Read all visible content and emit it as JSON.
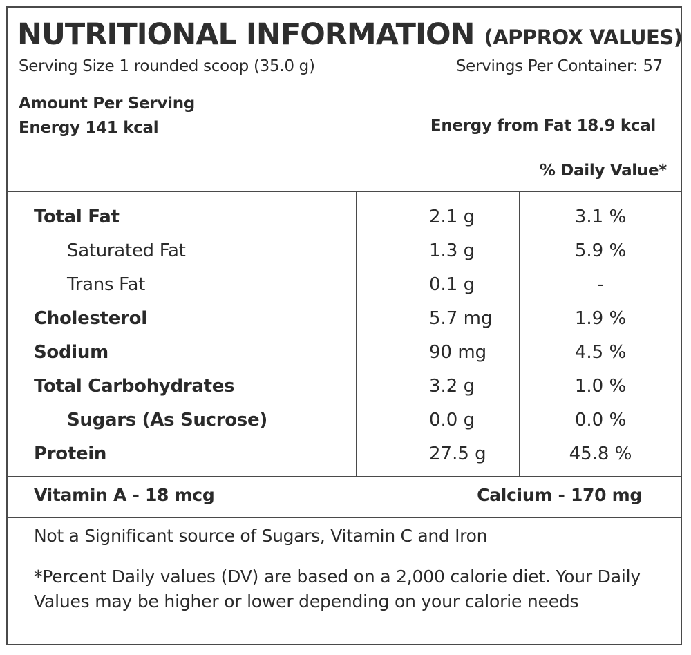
{
  "header": {
    "title": "NUTRITIONAL INFORMATION",
    "subtitle": "(APPROX VALUES)",
    "serving_size": "Serving Size 1 rounded scoop (35.0 g)",
    "servings_per_container": "Servings Per Container: 57"
  },
  "summary": {
    "amount_per_serving": "Amount Per Serving",
    "energy": "Energy 141 kcal",
    "energy_from_fat": "Energy from Fat 18.9 kcal"
  },
  "table": {
    "daily_value_header": "% Daily Value*",
    "rows": [
      {
        "name": "Total Fat",
        "amount": "2.1 g",
        "dv": "3.1 %"
      },
      {
        "name": "Saturated Fat",
        "amount": "1.3 g",
        "dv": "5.9 %"
      },
      {
        "name": "Trans Fat",
        "amount": "0.1 g",
        "dv": "-"
      },
      {
        "name": "Cholesterol",
        "amount": "5.7 mg",
        "dv": "1.9 %"
      },
      {
        "name": "Sodium",
        "amount": "90 mg",
        "dv": "4.5 %"
      },
      {
        "name": "Total Carbohydrates",
        "amount": "3.2 g",
        "dv": "1.0 %"
      },
      {
        "name": "Sugars (As Sucrose)",
        "amount": "0.0 g",
        "dv": "0.0 %"
      },
      {
        "name": "Protein",
        "amount": "27.5 g",
        "dv": "45.8 %"
      }
    ]
  },
  "minerals": {
    "vitamin_a": "Vitamin A - 18 mcg",
    "calcium": "Calcium - 170 mg"
  },
  "notes": {
    "not_significant": "Not a Significant source of Sugars, Vitamin C and Iron",
    "footnote": "*Percent Daily values (DV) are based on a 2,000 calorie diet. Your Daily Values may be higher or lower depending on your calorie needs"
  }
}
